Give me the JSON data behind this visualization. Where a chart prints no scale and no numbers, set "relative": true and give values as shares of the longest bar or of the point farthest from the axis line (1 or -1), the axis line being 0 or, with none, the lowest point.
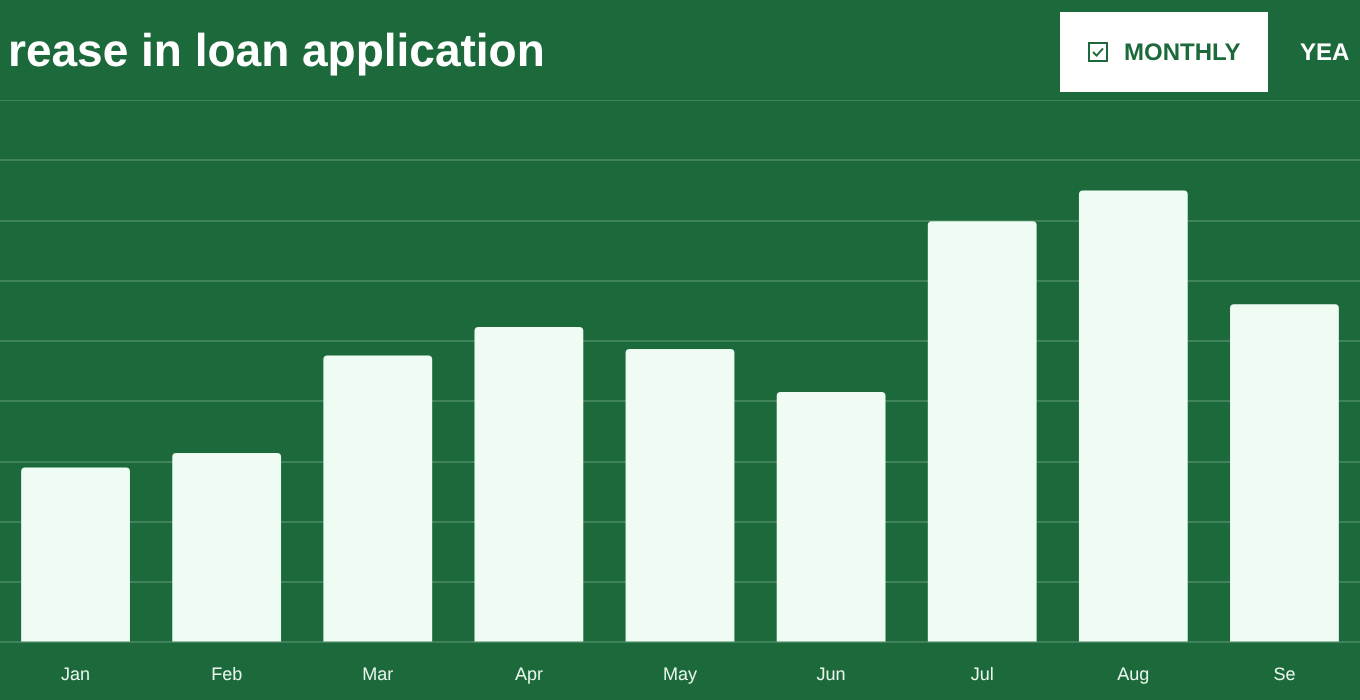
{
  "chart_data": {
    "type": "bar",
    "title": "rease in loan application",
    "categories": [
      "Jan",
      "Feb",
      "Mar",
      "Apr",
      "May",
      "Jun",
      "Jul",
      "Aug",
      "Se"
    ],
    "values": [
      0.387,
      0.419,
      0.635,
      0.698,
      0.649,
      0.554,
      0.932,
      1,
      0.748
    ],
    "color": "#effcf4",
    "relative": true,
    "grid": "y",
    "legend": false,
    "annotations": [
      "MONTHLY",
      "YEA"
    ]
  }
}
